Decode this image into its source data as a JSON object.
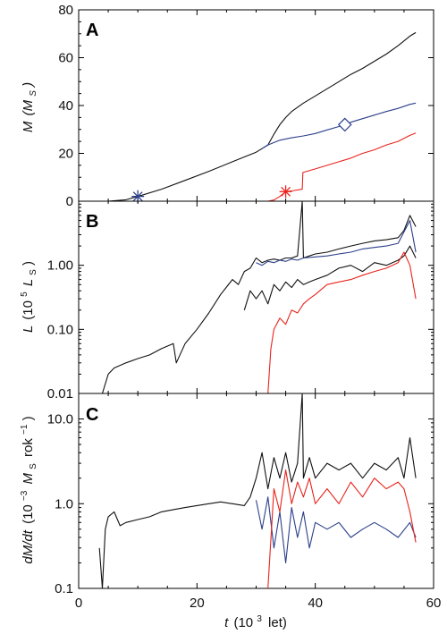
{
  "figure": {
    "colors": {
      "black": "#111111",
      "blue": "#2b3f8a",
      "red": "#e8231c"
    }
  },
  "chart_data": [
    {
      "type": "line",
      "panel_label": "A",
      "ylabel_main": "M",
      "ylabel_unit": "(M",
      "ylabel_sub": "S",
      "ylabel_close": ")",
      "xlim": [
        0,
        60
      ],
      "ylim": [
        0,
        80
      ],
      "yscale": "linear",
      "yticks": [
        0,
        20,
        40,
        60,
        80
      ],
      "ytick_labels": [
        "0",
        "20",
        "40",
        "60",
        "80"
      ],
      "series": [
        {
          "color": "black",
          "x": [
            5,
            8,
            10,
            14,
            18,
            22,
            26,
            28,
            30,
            31,
            32,
            33,
            34,
            35,
            36,
            38,
            40,
            42,
            44,
            46,
            48,
            50,
            52,
            54,
            56,
            57
          ],
          "y": [
            0,
            0.6,
            2,
            5,
            8.7,
            12.5,
            16.5,
            18.5,
            20.5,
            22,
            23.5,
            28,
            32,
            35,
            37.5,
            41,
            44,
            47,
            50,
            53,
            55.5,
            58.5,
            61.5,
            65,
            69,
            70.5
          ]
        },
        {
          "color": "blue",
          "x": [
            31,
            32,
            34,
            36,
            38,
            40,
            42,
            44,
            45,
            46,
            48,
            50,
            52,
            54,
            56,
            57
          ],
          "y": [
            22,
            23.5,
            25.5,
            26.5,
            27.3,
            28.3,
            29.8,
            31.2,
            32,
            33,
            34.5,
            36,
            37.5,
            38.8,
            40.5,
            41
          ]
        },
        {
          "color": "red",
          "x": [
            0,
            32,
            33,
            34,
            35,
            36,
            37.8,
            37.9,
            40,
            42,
            44,
            46,
            48,
            50,
            52,
            54,
            56,
            57
          ],
          "y": [
            0,
            0,
            0.5,
            2,
            4,
            4.3,
            5,
            12,
            13.5,
            15,
            16.5,
            18,
            20,
            21.5,
            23.5,
            25,
            27.5,
            28.5
          ]
        }
      ],
      "markers": [
        {
          "shape": "asterisk",
          "color": "blue",
          "x": 10,
          "y": 2
        },
        {
          "shape": "diamond",
          "color": "blue",
          "x": 45,
          "y": 32
        },
        {
          "shape": "asterisk",
          "color": "red",
          "x": 35,
          "y": 4
        }
      ]
    },
    {
      "type": "line",
      "panel_label": "B",
      "ylabel_main": "L",
      "ylabel_unit": "(10",
      "ylabel_exp": "5",
      "ylabel_sym": "L",
      "ylabel_sub": "S",
      "ylabel_close": ")",
      "xlim": [
        0,
        60
      ],
      "ylim": [
        0.01,
        10
      ],
      "yscale": "log",
      "yticks": [
        0.01,
        0.1,
        1.0
      ],
      "ytick_labels": [
        "0.01",
        "0.10",
        "1.00"
      ],
      "series": [
        {
          "color": "black",
          "x": [
            4,
            5,
            6,
            8,
            10,
            12,
            14,
            16,
            16.5,
            18,
            20,
            22,
            24,
            26,
            27,
            28,
            29,
            30,
            31,
            32,
            33,
            34,
            35,
            36,
            37,
            37.8,
            38,
            39,
            40,
            42,
            44,
            46,
            48,
            50,
            52,
            54,
            55,
            56,
            57
          ],
          "y": [
            0.01,
            0.02,
            0.025,
            0.03,
            0.035,
            0.04,
            0.05,
            0.06,
            0.03,
            0.06,
            0.1,
            0.18,
            0.35,
            0.6,
            0.5,
            0.8,
            0.9,
            1.3,
            1.1,
            1.2,
            1.25,
            1.2,
            1.3,
            1.3,
            1.4,
            10,
            1.3,
            1.4,
            1.5,
            1.6,
            1.8,
            2.0,
            2.2,
            2.4,
            2.5,
            2.7,
            3.5,
            6,
            4
          ]
        },
        {
          "color": "blue",
          "x": [
            30,
            31,
            32,
            33,
            34,
            35,
            36,
            37,
            38,
            40,
            42,
            44,
            46,
            48,
            50,
            52,
            54,
            56,
            57
          ],
          "y": [
            1.1,
            1.0,
            1.15,
            1.1,
            1.2,
            1.15,
            1.25,
            1.2,
            1.3,
            1.35,
            1.4,
            1.5,
            1.6,
            1.8,
            1.9,
            2.0,
            2.2,
            5,
            1.6
          ]
        },
        {
          "color": "black",
          "x": [
            28,
            29,
            30,
            31,
            32,
            33,
            34,
            35,
            36,
            37,
            38,
            39,
            40,
            42,
            44,
            46,
            48,
            50,
            52,
            54,
            55,
            56,
            57
          ],
          "y": [
            0.2,
            0.4,
            0.3,
            0.4,
            0.25,
            0.5,
            0.4,
            0.55,
            0.45,
            0.6,
            0.5,
            0.55,
            0.6,
            0.7,
            0.9,
            1.0,
            0.8,
            1.1,
            1.0,
            1.2,
            1.4,
            2.0,
            1.3
          ]
        },
        {
          "color": "red",
          "x": [
            32,
            32.5,
            33,
            34,
            35,
            36,
            37,
            38,
            39,
            40,
            42,
            44,
            46,
            48,
            50,
            52,
            54,
            55,
            56,
            57
          ],
          "y": [
            0.01,
            0.05,
            0.1,
            0.15,
            0.12,
            0.2,
            0.18,
            0.25,
            0.3,
            0.35,
            0.5,
            0.55,
            0.6,
            0.7,
            0.8,
            0.9,
            1.1,
            1.6,
            1.0,
            0.3
          ]
        }
      ]
    },
    {
      "type": "line",
      "panel_label": "C",
      "ylabel_main": "dM/dt",
      "ylabel_unit": "(10",
      "ylabel_exp": "−3",
      "ylabel_sym": "M",
      "ylabel_sub": "S",
      "ylabel_rest": "rok",
      "ylabel_exp2": "−1",
      "ylabel_close": ")",
      "xlabel_main": "t",
      "xlabel_unit": "(10",
      "xlabel_exp": "3",
      "xlabel_rest": "let)",
      "xlim": [
        0,
        60
      ],
      "ylim": [
        0.1,
        20
      ],
      "yscale": "log",
      "yticks": [
        0.1,
        1.0,
        10.0
      ],
      "ytick_labels": [
        "0.1",
        "1.0",
        "10.0"
      ],
      "xticks": [
        0,
        20,
        40,
        60
      ],
      "xtick_labels": [
        "0",
        "20",
        "40",
        "60"
      ],
      "series": [
        {
          "color": "black",
          "x": [
            3.5,
            4,
            4.5,
            5,
            6,
            7,
            8,
            10,
            12,
            14,
            16,
            18,
            20,
            22,
            24,
            26,
            28,
            29,
            30,
            31,
            32,
            33,
            34,
            35,
            36,
            37,
            37.8,
            38,
            39,
            40,
            42,
            44,
            46,
            48,
            50,
            52,
            54,
            55,
            56,
            57
          ],
          "y": [
            0.3,
            0.1,
            0.5,
            0.7,
            0.8,
            0.55,
            0.6,
            0.65,
            0.7,
            0.8,
            0.85,
            0.9,
            0.95,
            1.0,
            1.05,
            1.0,
            0.95,
            1.2,
            2.0,
            4.0,
            1.5,
            3.5,
            2.0,
            4.0,
            1.8,
            3.0,
            20,
            2.0,
            3.5,
            2.0,
            3.0,
            2.5,
            3.0,
            2.0,
            3.0,
            2.5,
            3.5,
            2.0,
            6.0,
            2.0
          ]
        },
        {
          "color": "blue",
          "x": [
            30,
            31,
            32,
            33,
            34,
            35,
            36,
            37,
            38,
            39,
            40,
            42,
            44,
            46,
            48,
            50,
            52,
            54,
            56,
            57
          ],
          "y": [
            1.1,
            0.5,
            1.2,
            0.3,
            0.8,
            0.2,
            0.9,
            0.4,
            0.8,
            0.3,
            0.6,
            0.5,
            0.6,
            0.4,
            0.5,
            0.6,
            0.5,
            0.4,
            0.6,
            0.4
          ]
        },
        {
          "color": "red",
          "x": [
            32,
            33,
            34,
            35,
            36,
            37,
            38,
            39,
            40,
            42,
            44,
            46,
            48,
            50,
            52,
            54,
            55,
            56,
            57
          ],
          "y": [
            0.1,
            1.5,
            0.8,
            2.5,
            1.0,
            1.8,
            1.2,
            2.0,
            1.0,
            1.5,
            1.0,
            1.8,
            1.2,
            2.0,
            1.5,
            1.8,
            1.5,
            0.8,
            0.35
          ]
        }
      ]
    }
  ]
}
